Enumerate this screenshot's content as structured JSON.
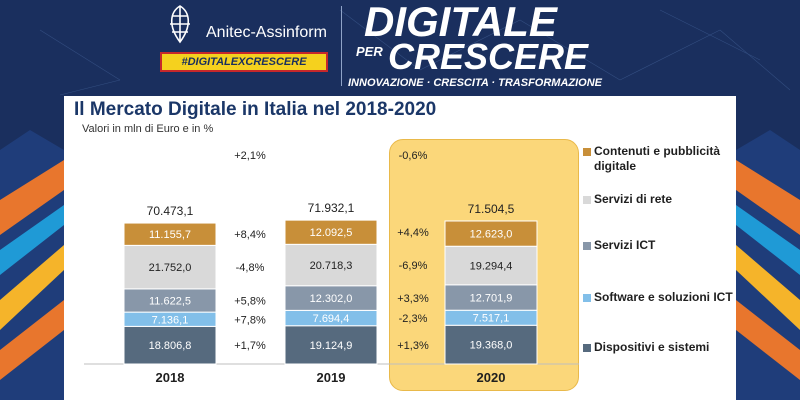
{
  "header": {
    "org_name": "Anitec-Assinform",
    "hashtag": "#DIGITALEXCRESCERE",
    "brand_line1": "DIGITALE",
    "brand_per": "PER",
    "brand_line2": "CRESCERE",
    "tagline": "INNOVAZIONE · CRESCITA · TRASFORMAZIONE"
  },
  "colors": {
    "background": "#1a2f5e",
    "hashtag_bg": "#f5d11e",
    "highlight": "#fbd77a",
    "title": "#1b3768"
  },
  "chart_data": {
    "type": "bar",
    "stacked": true,
    "title": "Il Mercato Digitale in Italia nel 2018-2020",
    "subtitle": "Valori in mln di Euro e in %",
    "categories": [
      "2018",
      "2019",
      "2020"
    ],
    "series": [
      {
        "name": "Dispositivi e sistemi",
        "color": "#566a7e",
        "values": [
          18806.8,
          19124.9,
          19368.0
        ],
        "labels": [
          "18.806,8",
          "19.124,9",
          "19.368,0"
        ],
        "growth": [
          "+1,7%",
          "+1,3%"
        ]
      },
      {
        "name": "Software e soluzioni ICT",
        "color": "#82bfe9",
        "values": [
          7136.1,
          7694.4,
          7517.1
        ],
        "labels": [
          "7.136,1",
          "7.694,4",
          "7.517,1"
        ],
        "growth": [
          "+7,8%",
          "-2,3%"
        ]
      },
      {
        "name": "Servizi ICT",
        "color": "#8897a9",
        "values": [
          11622.5,
          12302.0,
          12701.9
        ],
        "labels": [
          "11.622,5",
          "12.302,0",
          "12.701,9"
        ],
        "growth": [
          "+5,8%",
          "+3,3%"
        ]
      },
      {
        "name": "Servizi di rete",
        "color": "#d9d9d9",
        "values": [
          21752.0,
          20718.3,
          19294.4
        ],
        "labels": [
          "21.752,0",
          "20.718,3",
          "19.294,4"
        ],
        "growth": [
          "-4,8%",
          "-6,9%"
        ]
      },
      {
        "name": "Contenuti e pubblicità digitale",
        "color": "#c88f39",
        "values": [
          11155.7,
          12092.5,
          12623.0
        ],
        "labels": [
          "11.155,7",
          "12.092,5",
          "12.623,0"
        ],
        "growth": [
          "+8,4%",
          "+4,4%"
        ]
      }
    ],
    "totals": [
      70473.1,
      71932.1,
      71504.5
    ],
    "total_labels": [
      "70.473,1",
      "71.932,1",
      "71.504,5"
    ],
    "total_growth": [
      "+2,1%",
      "-0,6%"
    ],
    "legend_position": "right",
    "highlight_category": "2020",
    "grid": false
  }
}
